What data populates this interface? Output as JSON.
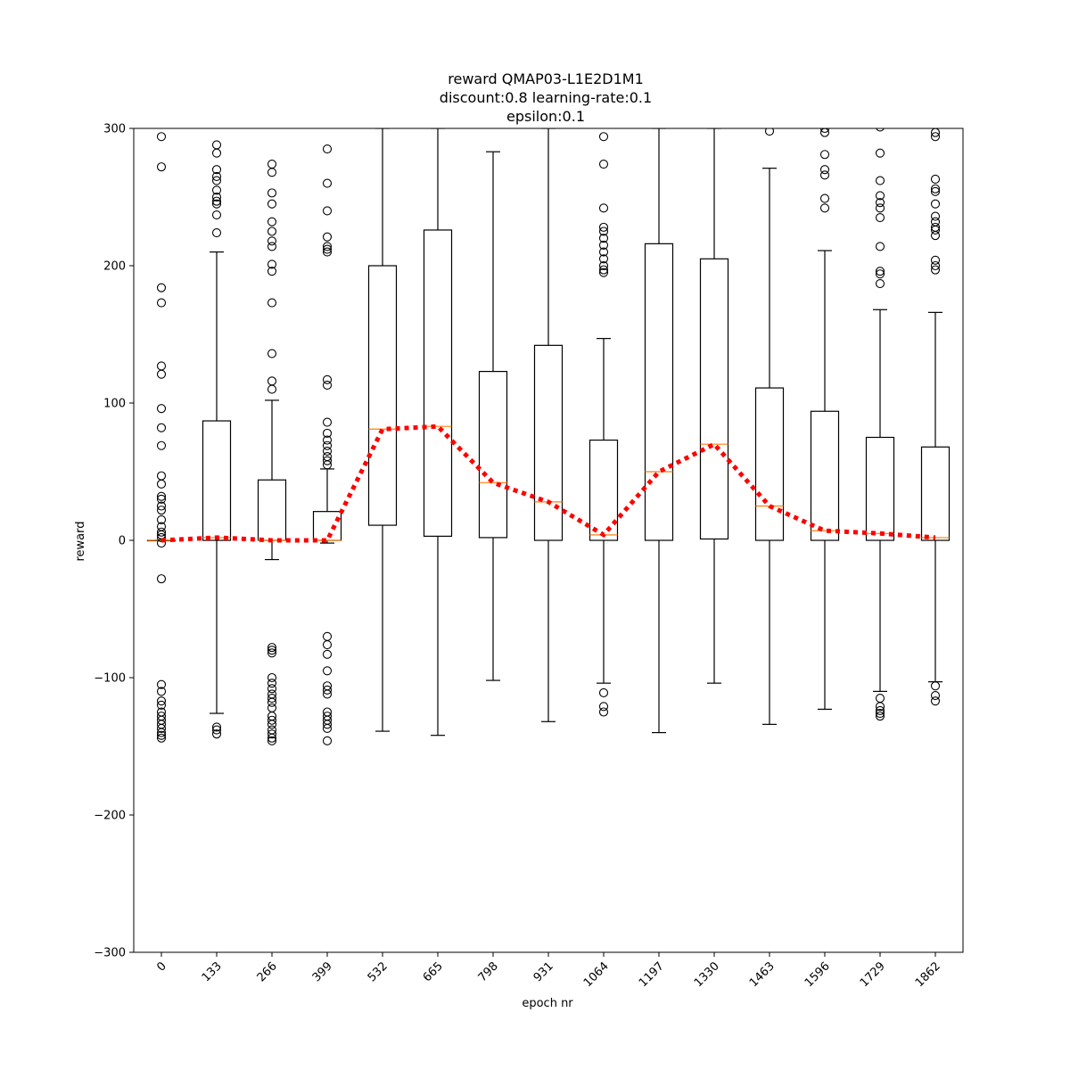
{
  "chart_data": {
    "type": "box",
    "title": [
      "reward QMAP03-L1E2D1M1",
      "discount:0.8 learning-rate:0.1",
      "epsilon:0.1"
    ],
    "xlabel": "epoch nr",
    "ylabel": "reward",
    "ylim": [
      -300,
      300
    ],
    "yticks": [
      -300,
      -200,
      -100,
      0,
      100,
      200,
      300
    ],
    "categories": [
      "0",
      "133",
      "266",
      "399",
      "532",
      "665",
      "798",
      "931",
      "1064",
      "1197",
      "1330",
      "1463",
      "1596",
      "1729",
      "1862"
    ],
    "boxes": [
      {
        "whislo": 0,
        "q1": 0,
        "med": 0,
        "q3": 0,
        "whishi": 0,
        "fliers": [
          294,
          272,
          184,
          173,
          127,
          121,
          96,
          82,
          69,
          47,
          41,
          32,
          30,
          25,
          22,
          15,
          10,
          6,
          4,
          2,
          -2,
          -28,
          -105,
          -110,
          -117,
          -120,
          -125,
          -128,
          -131,
          -134,
          -137,
          -140,
          -142,
          -144
        ]
      },
      {
        "whislo": -126,
        "q1": 0,
        "med": 2,
        "q3": 87,
        "whishi": 210,
        "fliers": [
          288,
          282,
          270,
          265,
          262,
          255,
          250,
          247,
          245,
          237,
          224,
          -136,
          -138,
          -141
        ]
      },
      {
        "whislo": -14,
        "q1": 0,
        "med": 0,
        "q3": 44,
        "whishi": 102,
        "fliers": [
          274,
          268,
          253,
          245,
          232,
          225,
          218,
          214,
          201,
          196,
          173,
          136,
          116,
          110,
          -78,
          -80,
          -82,
          -100,
          -104,
          -108,
          -112,
          -115,
          -118,
          -122,
          -128,
          -131,
          -134,
          -138,
          -141,
          -144,
          -146
        ]
      },
      {
        "whislo": -2,
        "q1": 0,
        "med": 0,
        "q3": 21,
        "whishi": 52,
        "fliers": [
          285,
          260,
          240,
          221,
          214,
          212,
          210,
          117,
          113,
          86,
          78,
          73,
          69,
          65,
          61,
          58,
          55,
          -70,
          -76,
          -83,
          -95,
          -106,
          -109,
          -112,
          -125,
          -128,
          -131,
          -134,
          -137,
          -146
        ]
      },
      {
        "whislo": -139,
        "q1": 11,
        "med": 81,
        "q3": 200,
        "whishi": 300,
        "fliers": []
      },
      {
        "whislo": -142,
        "q1": 3,
        "med": 83,
        "q3": 226,
        "whishi": 300,
        "fliers": []
      },
      {
        "whislo": -102,
        "q1": 2,
        "med": 42,
        "q3": 123,
        "whishi": 283,
        "fliers": []
      },
      {
        "whislo": -132,
        "q1": 0,
        "med": 28,
        "q3": 142,
        "whishi": 300,
        "fliers": []
      },
      {
        "whislo": -104,
        "q1": 0,
        "med": 4,
        "q3": 73,
        "whishi": 147,
        "fliers": [
          294,
          274,
          242,
          228,
          225,
          220,
          215,
          210,
          205,
          200,
          197,
          195,
          -111,
          -121,
          -125
        ]
      },
      {
        "whislo": -140,
        "q1": 0,
        "med": 50,
        "q3": 216,
        "whishi": 300,
        "fliers": []
      },
      {
        "whislo": -104,
        "q1": 1,
        "med": 70,
        "q3": 205,
        "whishi": 300,
        "fliers": []
      },
      {
        "whislo": -134,
        "q1": 0,
        "med": 25,
        "q3": 111,
        "whishi": 271,
        "fliers": [
          298
        ]
      },
      {
        "whislo": -123,
        "q1": 0,
        "med": 7,
        "q3": 94,
        "whishi": 211,
        "fliers": [
          300,
          297,
          281,
          270,
          266,
          249,
          242
        ]
      },
      {
        "whislo": -110,
        "q1": 0,
        "med": 5,
        "q3": 75,
        "whishi": 168,
        "fliers": [
          301,
          282,
          262,
          251,
          246,
          242,
          235,
          214,
          196,
          194,
          187,
          -115,
          -121,
          -124,
          -126,
          -128
        ]
      },
      {
        "whislo": -103,
        "q1": 0,
        "med": 2,
        "q3": 68,
        "whishi": 166,
        "fliers": [
          297,
          294,
          263,
          256,
          254,
          245,
          236,
          232,
          228,
          226,
          222,
          204,
          200,
          197,
          -106,
          -113,
          -117
        ]
      }
    ],
    "trend": {
      "style": "dotted",
      "color": "#ff0000",
      "values": [
        0,
        2,
        0,
        0,
        81,
        83,
        42,
        28,
        4,
        50,
        70,
        25,
        7,
        5,
        2
      ]
    },
    "colors": {
      "box": "#000000",
      "median": "#ff7f0e",
      "flier": "#000000",
      "trend": "#ff0000"
    },
    "grid": false,
    "legend": "none"
  }
}
